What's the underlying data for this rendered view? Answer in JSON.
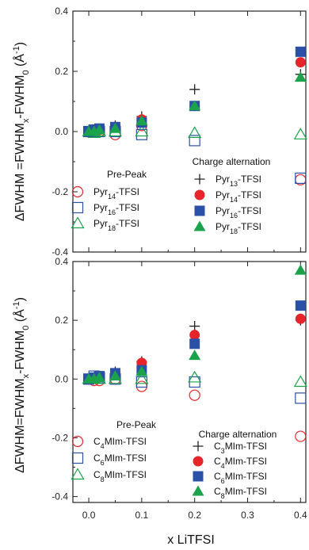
{
  "colors": {
    "pyr14": "#e8242b",
    "pyr16": "#2b50a8",
    "pyr18": "#1aa34a",
    "pyr13": "#222222"
  },
  "chart_data": [
    {
      "type": "scatter",
      "panel": "top",
      "ylabel": "ΔFWHM =FWHM_x-FWHM_0 (Å^-1)",
      "ylabel_parts": {
        "pre": "ΔFWHM =FWHM",
        "sub1": "x",
        "mid": "-FWHM",
        "sub2": "0",
        "unit": " (Å",
        "sup": "-1",
        "post": ")"
      },
      "xlim": [
        -0.03,
        0.41
      ],
      "ylim": [
        -0.4,
        0.4
      ],
      "xticks": [
        "0.0",
        "0.1",
        "0.2",
        "0.3",
        "0.4"
      ],
      "yticks": [
        "-0.4",
        "-0.2",
        "0.0",
        "0.2",
        "0.4"
      ],
      "legend_pre_title": "Pre-Peak",
      "legend_ca_title": "Charge alternation",
      "series": [
        {
          "name": "Pyr14-TFSI",
          "base": "Pyr",
          "sub": "14",
          "suffix": "-TFSI",
          "group": "pre",
          "marker": "circle-open",
          "color": "#e8242b",
          "x": [
            0.0,
            0.01,
            0.02,
            0.05,
            0.1,
            0.4
          ],
          "y": [
            0.0,
            0.0,
            0.0,
            -0.01,
            0.02,
            -0.16
          ]
        },
        {
          "name": "Pyr16-TFSI",
          "base": "Pyr",
          "sub": "16",
          "suffix": "-TFSI",
          "group": "pre",
          "marker": "square-open",
          "color": "#2b50a8",
          "x": [
            0.0,
            0.01,
            0.02,
            0.05,
            0.1,
            0.2,
            0.4
          ],
          "y": [
            0.0,
            0.005,
            0.0,
            0.0,
            -0.01,
            -0.03,
            -0.155
          ]
        },
        {
          "name": "Pyr18-TFSI",
          "base": "Pyr",
          "sub": "18",
          "suffix": "-TFSI",
          "group": "pre",
          "marker": "triangle-open",
          "color": "#1aa34a",
          "x": [
            0.0,
            0.01,
            0.02,
            0.05,
            0.1,
            0.2,
            0.4
          ],
          "y": [
            0.0,
            -0.005,
            0.0,
            0.0,
            0.0,
            -0.005,
            -0.01
          ]
        },
        {
          "name": "Pyr13-TFSI",
          "base": "Pyr",
          "sub": "13",
          "suffix": "-TFSI",
          "group": "ca",
          "marker": "plus",
          "color": "#222222",
          "x": [
            0.0,
            0.01,
            0.02,
            0.05,
            0.1,
            0.2,
            0.4
          ],
          "y": [
            0.0,
            0.005,
            0.01,
            0.02,
            0.05,
            0.14,
            0.19
          ]
        },
        {
          "name": "Pyr14-TFSI",
          "base": "Pyr",
          "sub": "14",
          "suffix": "-TFSI",
          "group": "ca",
          "marker": "circle",
          "color": "#e8242b",
          "x": [
            0.0,
            0.01,
            0.02,
            0.05,
            0.1,
            0.2,
            0.4
          ],
          "y": [
            0.0,
            0.005,
            0.005,
            0.015,
            0.04,
            0.085,
            0.23
          ]
        },
        {
          "name": "Pyr16-TFSI",
          "base": "Pyr",
          "sub": "16",
          "suffix": "-TFSI",
          "group": "ca",
          "marker": "square",
          "color": "#2b50a8",
          "x": [
            0.0,
            0.01,
            0.02,
            0.05,
            0.1,
            0.2,
            0.4
          ],
          "y": [
            0.0,
            0.005,
            0.01,
            0.015,
            0.03,
            0.085,
            0.265
          ]
        },
        {
          "name": "Pyr18-TFSI",
          "base": "Pyr",
          "sub": "18",
          "suffix": "-TFSI",
          "group": "ca",
          "marker": "triangle",
          "color": "#1aa34a",
          "x": [
            0.0,
            0.01,
            0.02,
            0.05,
            0.1,
            0.2,
            0.4
          ],
          "y": [
            0.0,
            0.0,
            0.005,
            0.01,
            0.035,
            0.085,
            0.18
          ]
        }
      ]
    },
    {
      "type": "scatter",
      "panel": "bottom",
      "xlabel": "x LiTFSI",
      "ylabel": "ΔFWHM=FWHM_x-FWHM_0 (Å^-1)",
      "ylabel_parts": {
        "pre": "ΔFWHM=FWHM",
        "sub1": "x",
        "mid": "-FWHM",
        "sub2": "0",
        "unit": " (Å",
        "sup": "-1",
        "post": ")"
      },
      "xlim": [
        -0.03,
        0.41
      ],
      "ylim": [
        -0.42,
        0.4
      ],
      "xticks": [
        "0.0",
        "0.1",
        "0.2",
        "0.3",
        "0.4"
      ],
      "yticks": [
        "-0.4",
        "-0.2",
        "0.0",
        "0.2",
        "0.4"
      ],
      "legend_pre_title": "Pre-Peak",
      "legend_ca_title": "Charge alternation",
      "series": [
        {
          "name": "C4MIm-TFSI",
          "base": "C",
          "sub": "4",
          "suffix": "MIm-TFSI",
          "group": "pre",
          "marker": "circle-open",
          "color": "#e8242b",
          "x": [
            0.0,
            0.01,
            0.02,
            0.05,
            0.1,
            0.2,
            0.4
          ],
          "y": [
            0.0,
            -0.005,
            -0.005,
            0.0,
            -0.025,
            -0.055,
            -0.195
          ]
        },
        {
          "name": "C6MIm-TFSI",
          "base": "C",
          "sub": "6",
          "suffix": "MIm-TFSI",
          "group": "pre",
          "marker": "square-open",
          "color": "#2b50a8",
          "x": [
            0.0,
            0.01,
            0.02,
            0.05,
            0.1,
            0.2,
            0.4
          ],
          "y": [
            0.0,
            0.01,
            0.005,
            0.0,
            -0.01,
            -0.01,
            -0.065
          ]
        },
        {
          "name": "C8MIm-TFSI",
          "base": "C",
          "sub": "8",
          "suffix": "MIm-TFSI",
          "group": "pre",
          "marker": "triangle-open",
          "color": "#1aa34a",
          "x": [
            0.0,
            0.01,
            0.02,
            0.05,
            0.1,
            0.2,
            0.4
          ],
          "y": [
            0.0,
            0.0,
            0.0,
            0.0,
            0.0,
            0.005,
            -0.01
          ]
        },
        {
          "name": "C3MIm-TFSI",
          "base": "C",
          "sub": "3",
          "suffix": "MIm-TFSI",
          "group": "ca",
          "marker": "plus",
          "color": "#222222",
          "x": [
            0.0,
            0.01,
            0.02,
            0.05,
            0.1,
            0.2,
            0.4
          ],
          "y": [
            0.0,
            0.005,
            0.01,
            0.025,
            0.06,
            0.18,
            0.2
          ]
        },
        {
          "name": "C4MIm-TFSI",
          "base": "C",
          "sub": "4",
          "suffix": "MIm-TFSI",
          "group": "ca",
          "marker": "circle",
          "color": "#e8242b",
          "x": [
            0.0,
            0.01,
            0.02,
            0.05,
            0.1,
            0.2,
            0.4
          ],
          "y": [
            0.0,
            0.005,
            0.01,
            0.02,
            0.055,
            0.15,
            0.205
          ]
        },
        {
          "name": "C6MIm-TFSI",
          "base": "C",
          "sub": "6",
          "suffix": "MIm-TFSI",
          "group": "ca",
          "marker": "square",
          "color": "#2b50a8",
          "x": [
            0.0,
            0.01,
            0.02,
            0.05,
            0.1,
            0.2,
            0.4
          ],
          "y": [
            0.0,
            0.005,
            0.01,
            0.02,
            0.03,
            0.12,
            0.25
          ]
        },
        {
          "name": "C8MIm-TFSI",
          "base": "C",
          "sub": "8",
          "suffix": "MIm-TFSI",
          "group": "ca",
          "marker": "triangle",
          "color": "#1aa34a",
          "x": [
            0.0,
            0.01,
            0.02,
            0.05,
            0.1,
            0.2,
            0.4
          ],
          "y": [
            0.0,
            0.0,
            0.005,
            0.01,
            0.025,
            0.08,
            0.37
          ]
        }
      ]
    }
  ]
}
